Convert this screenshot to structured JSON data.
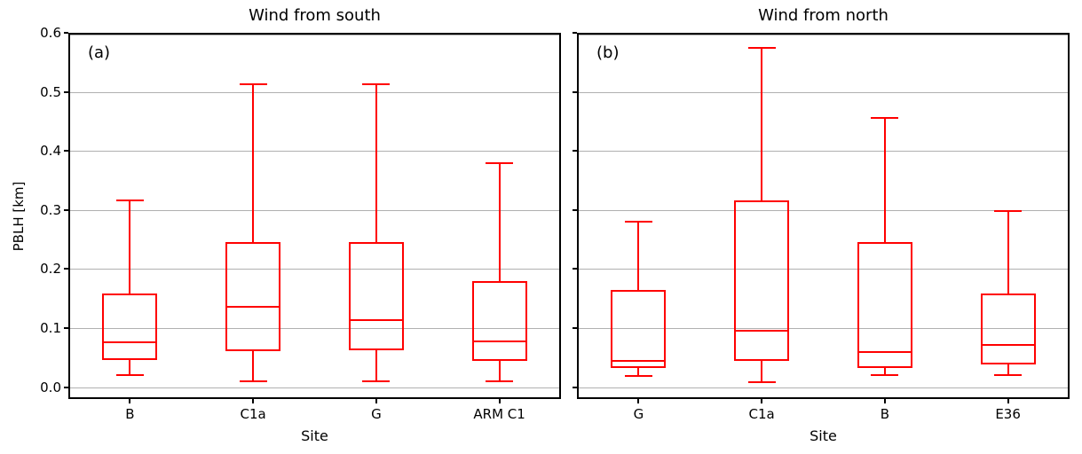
{
  "figure": {
    "background_color": "#ffffff",
    "series_color": "#ff0000",
    "grid_color": "#b0b0b0",
    "axis_color": "#000000"
  },
  "chart_data": [
    {
      "type": "boxplot",
      "panel_label": "(a)",
      "title": "Wind from south",
      "xlabel": "Site",
      "ylabel": "PBLH [km]",
      "ylim": [
        -0.02,
        0.6
      ],
      "yticks": [
        0.0,
        0.1,
        0.2,
        0.3,
        0.4,
        0.5,
        0.6
      ],
      "ytick_labels": [
        "0.0",
        "0.1",
        "0.2",
        "0.3",
        "0.4",
        "0.5",
        "0.6"
      ],
      "show_ytick_labels": true,
      "grid": true,
      "categories": [
        "B",
        "C1a",
        "G",
        "ARM C1"
      ],
      "series": [
        {
          "site": "B",
          "whisker_low": 0.02,
          "q1": 0.046,
          "median": 0.076,
          "q3": 0.158,
          "whisker_high": 0.317
        },
        {
          "site": "C1a",
          "whisker_low": 0.01,
          "q1": 0.061,
          "median": 0.136,
          "q3": 0.245,
          "whisker_high": 0.513
        },
        {
          "site": "G",
          "whisker_low": 0.01,
          "q1": 0.062,
          "median": 0.113,
          "q3": 0.245,
          "whisker_high": 0.513
        },
        {
          "site": "ARM C1",
          "whisker_low": 0.01,
          "q1": 0.044,
          "median": 0.077,
          "q3": 0.18,
          "whisker_high": 0.379
        }
      ]
    },
    {
      "type": "boxplot",
      "panel_label": "(b)",
      "title": "Wind from north",
      "xlabel": "Site",
      "ylabel": "",
      "ylim": [
        -0.02,
        0.6
      ],
      "yticks": [
        0.0,
        0.1,
        0.2,
        0.3,
        0.4,
        0.5,
        0.6
      ],
      "ytick_labels": [
        "0.0",
        "0.1",
        "0.2",
        "0.3",
        "0.4",
        "0.5",
        "0.6"
      ],
      "show_ytick_labels": false,
      "grid": true,
      "categories": [
        "G",
        "C1a",
        "B",
        "E36"
      ],
      "series": [
        {
          "site": "G",
          "whisker_low": 0.019,
          "q1": 0.032,
          "median": 0.044,
          "q3": 0.165,
          "whisker_high": 0.28
        },
        {
          "site": "C1a",
          "whisker_low": 0.009,
          "q1": 0.045,
          "median": 0.095,
          "q3": 0.316,
          "whisker_high": 0.574
        },
        {
          "site": "B",
          "whisker_low": 0.02,
          "q1": 0.033,
          "median": 0.06,
          "q3": 0.245,
          "whisker_high": 0.456
        },
        {
          "site": "E36",
          "whisker_low": 0.02,
          "q1": 0.038,
          "median": 0.072,
          "q3": 0.159,
          "whisker_high": 0.299
        }
      ]
    }
  ]
}
